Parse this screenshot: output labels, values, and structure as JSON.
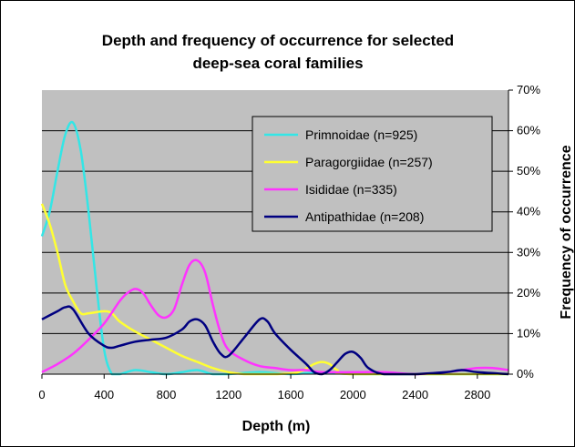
{
  "chart_data": {
    "type": "line",
    "title_line1": "Depth and frequency of occurrence for selected",
    "title_line2": "deep-sea coral families",
    "xlabel": "Depth (m)",
    "ylabel": "Frequency of occurrence",
    "xlim": [
      0,
      3000
    ],
    "ylim": [
      0,
      0.7
    ],
    "xticks": [
      "0",
      "400",
      "800",
      "1200",
      "1600",
      "2000",
      "2400",
      "2800"
    ],
    "yticks": [
      "0%",
      "10%",
      "20%",
      "30%",
      "40%",
      "50%",
      "60%",
      "70%"
    ],
    "grid": true,
    "legend_position": "top-right",
    "series": [
      {
        "name": "Primnoidae (n=925)",
        "color": "#33e6e6",
        "points": [
          [
            0,
            0.34
          ],
          [
            50,
            0.4
          ],
          [
            100,
            0.5
          ],
          [
            150,
            0.59
          ],
          [
            200,
            0.62
          ],
          [
            250,
            0.55
          ],
          [
            300,
            0.4
          ],
          [
            350,
            0.22
          ],
          [
            400,
            0.06
          ],
          [
            450,
            0.0
          ],
          [
            500,
            0.0
          ],
          [
            600,
            0.01
          ],
          [
            700,
            0.005
          ],
          [
            800,
            0.0
          ],
          [
            900,
            0.005
          ],
          [
            1000,
            0.01
          ],
          [
            1100,
            0.0
          ],
          [
            1200,
            0.0
          ],
          [
            1400,
            0.005
          ],
          [
            1600,
            0.0
          ],
          [
            1800,
            0.005
          ],
          [
            2000,
            0.0
          ],
          [
            2200,
            0.0
          ],
          [
            2600,
            0.0
          ],
          [
            3000,
            0.0
          ]
        ]
      },
      {
        "name": "Paragorgiidae (n=257)",
        "color": "#ffff33",
        "points": [
          [
            0,
            0.42
          ],
          [
            50,
            0.37
          ],
          [
            100,
            0.3
          ],
          [
            150,
            0.22
          ],
          [
            200,
            0.18
          ],
          [
            250,
            0.15
          ],
          [
            300,
            0.15
          ],
          [
            400,
            0.155
          ],
          [
            450,
            0.15
          ],
          [
            500,
            0.13
          ],
          [
            600,
            0.105
          ],
          [
            700,
            0.085
          ],
          [
            800,
            0.065
          ],
          [
            900,
            0.045
          ],
          [
            1000,
            0.03
          ],
          [
            1100,
            0.015
          ],
          [
            1200,
            0.005
          ],
          [
            1300,
            0.0
          ],
          [
            1500,
            0.0
          ],
          [
            1650,
            0.005
          ],
          [
            1750,
            0.025
          ],
          [
            1800,
            0.03
          ],
          [
            1850,
            0.025
          ],
          [
            1900,
            0.01
          ],
          [
            2000,
            0.0
          ],
          [
            3000,
            0.0
          ]
        ]
      },
      {
        "name": "Isididae (n=335)",
        "color": "#ff33ff",
        "points": [
          [
            0,
            0.005
          ],
          [
            100,
            0.025
          ],
          [
            200,
            0.05
          ],
          [
            300,
            0.085
          ],
          [
            400,
            0.125
          ],
          [
            500,
            0.18
          ],
          [
            550,
            0.2
          ],
          [
            600,
            0.21
          ],
          [
            650,
            0.2
          ],
          [
            700,
            0.17
          ],
          [
            750,
            0.145
          ],
          [
            800,
            0.14
          ],
          [
            850,
            0.16
          ],
          [
            900,
            0.22
          ],
          [
            950,
            0.27
          ],
          [
            1000,
            0.28
          ],
          [
            1050,
            0.25
          ],
          [
            1100,
            0.17
          ],
          [
            1150,
            0.1
          ],
          [
            1200,
            0.06
          ],
          [
            1300,
            0.035
          ],
          [
            1400,
            0.02
          ],
          [
            1500,
            0.015
          ],
          [
            1600,
            0.01
          ],
          [
            1700,
            0.01
          ],
          [
            1800,
            0.005
          ],
          [
            2000,
            0.005
          ],
          [
            2200,
            0.005
          ],
          [
            2400,
            0.0
          ],
          [
            2600,
            0.005
          ],
          [
            2700,
            0.01
          ],
          [
            2800,
            0.015
          ],
          [
            2900,
            0.015
          ],
          [
            3000,
            0.01
          ]
        ]
      },
      {
        "name": "Antipathidae (n=208)",
        "color": "#000080",
        "points": [
          [
            0,
            0.135
          ],
          [
            100,
            0.155
          ],
          [
            150,
            0.165
          ],
          [
            200,
            0.16
          ],
          [
            300,
            0.1
          ],
          [
            400,
            0.07
          ],
          [
            450,
            0.065
          ],
          [
            500,
            0.07
          ],
          [
            600,
            0.08
          ],
          [
            700,
            0.085
          ],
          [
            800,
            0.09
          ],
          [
            900,
            0.11
          ],
          [
            950,
            0.13
          ],
          [
            1000,
            0.135
          ],
          [
            1050,
            0.12
          ],
          [
            1100,
            0.08
          ],
          [
            1150,
            0.05
          ],
          [
            1200,
            0.045
          ],
          [
            1300,
            0.09
          ],
          [
            1400,
            0.135
          ],
          [
            1450,
            0.13
          ],
          [
            1500,
            0.1
          ],
          [
            1600,
            0.06
          ],
          [
            1700,
            0.025
          ],
          [
            1750,
            0.005
          ],
          [
            1800,
            0.0
          ],
          [
            1850,
            0.01
          ],
          [
            1900,
            0.03
          ],
          [
            1950,
            0.05
          ],
          [
            2000,
            0.055
          ],
          [
            2050,
            0.04
          ],
          [
            2100,
            0.015
          ],
          [
            2200,
            0.0
          ],
          [
            2400,
            0.0
          ],
          [
            2600,
            0.005
          ],
          [
            2700,
            0.01
          ],
          [
            2800,
            0.005
          ],
          [
            3000,
            0.0
          ]
        ]
      }
    ]
  }
}
